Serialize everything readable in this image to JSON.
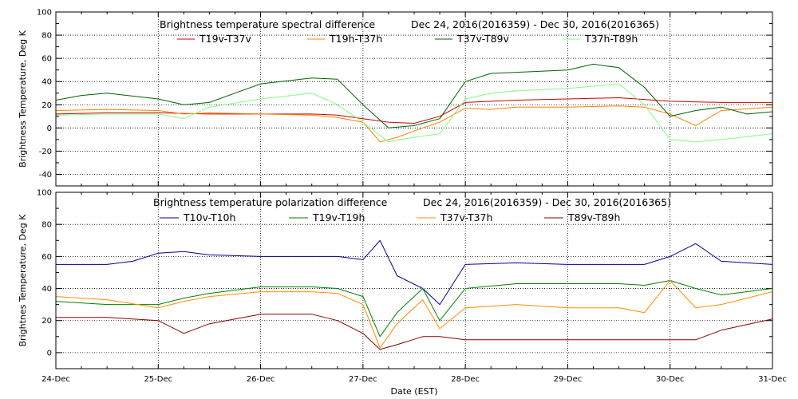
{
  "chart_data": [
    {
      "type": "line",
      "title_left": "Brightness temperature spectral difference",
      "title_right": "Dec 24, 2016(2016359) - Dec 30, 2016(2016365)",
      "ylabel": "Brightness Temperature, Deg K",
      "ylim": [
        -50,
        100
      ],
      "yticks": [
        "-40",
        "-20",
        "0",
        "20",
        "40",
        "60",
        "80",
        "100"
      ],
      "xlim": [
        "2016-12-24",
        "2016-12-31"
      ],
      "grid": true,
      "legend_placement": "top",
      "series": [
        {
          "name": "T19v-T37v",
          "color": "#cc0000",
          "x": [
            "2016-12-24T00:00",
            "2016-12-24T12:00",
            "2016-12-25T00:00",
            "2016-12-25T12:00",
            "2016-12-26T00:00",
            "2016-12-26T12:00",
            "2016-12-26T18:00",
            "2016-12-27T00:00",
            "2016-12-27T06:00",
            "2016-12-27T12:00",
            "2016-12-27T18:00",
            "2016-12-28T00:00",
            "2016-12-28T12:00",
            "2016-12-29T00:00",
            "2016-12-29T12:00",
            "2016-12-30T00:00",
            "2016-12-30T12:00",
            "2016-12-31T00:00"
          ],
          "values": [
            12,
            13,
            13,
            12,
            12,
            12,
            11,
            8,
            5,
            4,
            10,
            22,
            24,
            25,
            26,
            23,
            22,
            22
          ]
        },
        {
          "name": "T19h-T37h",
          "color": "#ff8000",
          "x": [
            "2016-12-24T00:00",
            "2016-12-24T12:00",
            "2016-12-25T00:00",
            "2016-12-25T06:00",
            "2016-12-25T12:00",
            "2016-12-26T00:00",
            "2016-12-26T12:00",
            "2016-12-26T18:00",
            "2016-12-27T00:00",
            "2016-12-27T04:00",
            "2016-12-27T08:00",
            "2016-12-27T14:00",
            "2016-12-27T18:00",
            "2016-12-28T00:00",
            "2016-12-28T06:00",
            "2016-12-28T12:00",
            "2016-12-29T00:00",
            "2016-12-29T12:00",
            "2016-12-29T18:00",
            "2016-12-30T00:00",
            "2016-12-30T06:00",
            "2016-12-30T12:00",
            "2016-12-31T00:00"
          ],
          "values": [
            15,
            16,
            15,
            12,
            13,
            12,
            11,
            9,
            5,
            -12,
            -8,
            0,
            5,
            17,
            16,
            18,
            18,
            19,
            18,
            12,
            2,
            15,
            18
          ]
        },
        {
          "name": "T37v-T89v",
          "color": "#006400",
          "x": [
            "2016-12-24T00:00",
            "2016-12-24T06:00",
            "2016-12-24T12:00",
            "2016-12-25T00:00",
            "2016-12-25T06:00",
            "2016-12-25T12:00",
            "2016-12-25T18:00",
            "2016-12-26T00:00",
            "2016-12-26T12:00",
            "2016-12-26T18:00",
            "2016-12-27T00:00",
            "2016-12-27T06:00",
            "2016-12-27T12:00",
            "2016-12-27T18:00",
            "2016-12-28T00:00",
            "2016-12-28T06:00",
            "2016-12-28T12:00",
            "2016-12-29T00:00",
            "2016-12-29T06:00",
            "2016-12-29T12:00",
            "2016-12-29T18:00",
            "2016-12-30T00:00",
            "2016-12-30T06:00",
            "2016-12-30T12:00",
            "2016-12-30T18:00",
            "2016-12-31T00:00"
          ],
          "values": [
            24,
            28,
            30,
            25,
            20,
            22,
            30,
            38,
            43,
            42,
            20,
            0,
            2,
            8,
            40,
            47,
            48,
            50,
            55,
            52,
            35,
            10,
            15,
            18,
            12,
            14
          ]
        },
        {
          "name": "T37h-T89h",
          "color": "#80ff80",
          "x": [
            "2016-12-24T00:00",
            "2016-12-24T12:00",
            "2016-12-25T00:00",
            "2016-12-25T06:00",
            "2016-12-25T12:00",
            "2016-12-26T00:00",
            "2016-12-26T12:00",
            "2016-12-26T18:00",
            "2016-12-27T00:00",
            "2016-12-27T06:00",
            "2016-12-27T12:00",
            "2016-12-27T18:00",
            "2016-12-28T00:00",
            "2016-12-28T06:00",
            "2016-12-28T12:00",
            "2016-12-29T00:00",
            "2016-12-29T06:00",
            "2016-12-29T12:00",
            "2016-12-29T18:00",
            "2016-12-30T00:00",
            "2016-12-30T06:00",
            "2016-12-30T12:00",
            "2016-12-31T00:00"
          ],
          "values": [
            11,
            12,
            12,
            8,
            18,
            25,
            30,
            20,
            5,
            -12,
            -8,
            -5,
            25,
            30,
            32,
            34,
            36,
            38,
            20,
            -10,
            -12,
            -10,
            -5
          ]
        }
      ]
    },
    {
      "type": "line",
      "title_left": "Brightness temperature polarization difference",
      "title_right": "Dec 24, 2016(2016359) - Dec 30, 2016(2016365)",
      "ylabel": "Brightnes Temperature, Deg K",
      "xlabel": "Date (EST)",
      "ylim": [
        -10,
        100
      ],
      "yticks": [
        "0",
        "20",
        "40",
        "60",
        "80",
        "100"
      ],
      "xticks": [
        "24-Dec",
        "25-Dec",
        "26-Dec",
        "27-Dec",
        "28-Dec",
        "29-Dec",
        "30-Dec",
        "31-Dec"
      ],
      "xlim": [
        "2016-12-24",
        "2016-12-31"
      ],
      "grid": true,
      "legend_placement": "top",
      "series": [
        {
          "name": "T10v-T10h",
          "color": "#00008b",
          "x": [
            "2016-12-24T00:00",
            "2016-12-24T12:00",
            "2016-12-24T18:00",
            "2016-12-25T00:00",
            "2016-12-25T06:00",
            "2016-12-25T12:00",
            "2016-12-26T00:00",
            "2016-12-26T12:00",
            "2016-12-26T18:00",
            "2016-12-27T00:00",
            "2016-12-27T04:00",
            "2016-12-27T08:00",
            "2016-12-27T14:00",
            "2016-12-27T18:00",
            "2016-12-28T00:00",
            "2016-12-28T12:00",
            "2016-12-29T00:00",
            "2016-12-29T12:00",
            "2016-12-29T18:00",
            "2016-12-30T00:00",
            "2016-12-30T06:00",
            "2016-12-30T12:00",
            "2016-12-31T00:00"
          ],
          "values": [
            55,
            55,
            57,
            62,
            63,
            61,
            60,
            60,
            60,
            58,
            70,
            48,
            40,
            30,
            55,
            56,
            55,
            55,
            55,
            60,
            68,
            57,
            55
          ]
        },
        {
          "name": "T19v-T19h",
          "color": "#008000",
          "x": [
            "2016-12-24T00:00",
            "2016-12-24T12:00",
            "2016-12-25T00:00",
            "2016-12-25T06:00",
            "2016-12-25T12:00",
            "2016-12-26T00:00",
            "2016-12-26T12:00",
            "2016-12-26T18:00",
            "2016-12-27T00:00",
            "2016-12-27T04:00",
            "2016-12-27T08:00",
            "2016-12-27T14:00",
            "2016-12-27T18:00",
            "2016-12-28T00:00",
            "2016-12-28T12:00",
            "2016-12-29T00:00",
            "2016-12-29T12:00",
            "2016-12-29T18:00",
            "2016-12-30T00:00",
            "2016-12-30T06:00",
            "2016-12-30T12:00",
            "2016-12-31T00:00"
          ],
          "values": [
            32,
            30,
            30,
            34,
            37,
            41,
            41,
            40,
            35,
            10,
            25,
            40,
            20,
            40,
            43,
            43,
            43,
            42,
            45,
            40,
            36,
            40
          ]
        },
        {
          "name": "T37v-T37h",
          "color": "#ff8c00",
          "x": [
            "2016-12-24T00:00",
            "2016-12-24T12:00",
            "2016-12-25T00:00",
            "2016-12-25T06:00",
            "2016-12-25T12:00",
            "2016-12-26T00:00",
            "2016-12-26T12:00",
            "2016-12-26T18:00",
            "2016-12-27T00:00",
            "2016-12-27T04:00",
            "2016-12-27T08:00",
            "2016-12-27T14:00",
            "2016-12-27T18:00",
            "2016-12-28T00:00",
            "2016-12-28T12:00",
            "2016-12-29T00:00",
            "2016-12-29T12:00",
            "2016-12-29T18:00",
            "2016-12-30T00:00",
            "2016-12-30T06:00",
            "2016-12-30T12:00",
            "2016-12-31T00:00"
          ],
          "values": [
            35,
            33,
            28,
            32,
            35,
            38,
            38,
            37,
            30,
            3,
            18,
            33,
            15,
            28,
            30,
            28,
            28,
            25,
            45,
            28,
            30,
            38
          ]
        },
        {
          "name": "T89v-T89h",
          "color": "#8b0000",
          "x": [
            "2016-12-24T00:00",
            "2016-12-24T12:00",
            "2016-12-25T00:00",
            "2016-12-25T06:00",
            "2016-12-25T12:00",
            "2016-12-26T00:00",
            "2016-12-26T12:00",
            "2016-12-26T18:00",
            "2016-12-27T00:00",
            "2016-12-27T04:00",
            "2016-12-27T08:00",
            "2016-12-27T14:00",
            "2016-12-27T18:00",
            "2016-12-28T00:00",
            "2016-12-28T12:00",
            "2016-12-29T00:00",
            "2016-12-29T12:00",
            "2016-12-29T18:00",
            "2016-12-30T00:00",
            "2016-12-30T06:00",
            "2016-12-30T12:00",
            "2016-12-31T00:00"
          ],
          "values": [
            22,
            22,
            20,
            12,
            18,
            24,
            24,
            20,
            12,
            2,
            5,
            10,
            10,
            8,
            8,
            8,
            8,
            8,
            8,
            8,
            14,
            21
          ]
        }
      ]
    }
  ]
}
